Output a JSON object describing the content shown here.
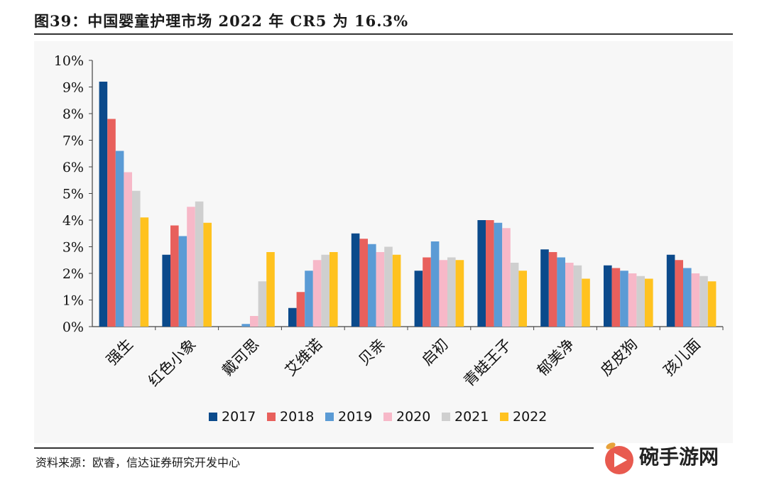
{
  "header": {
    "title": "图39：中国婴童护理市场 2022 年 CR5 为 16.3%"
  },
  "footer": {
    "source": "资料来源：欧睿，信达证券研究开发中心"
  },
  "watermark": {
    "text": "碗手游网",
    "icon": "play-badge-icon"
  },
  "colors": {
    "2017": "#0b4a8b",
    "2018": "#e8605c",
    "2019": "#5b9bd5",
    "2020": "#f7b8c8",
    "2021": "#cfcfcf",
    "2022": "#ffc21f"
  },
  "chart_data": {
    "type": "bar",
    "title": "",
    "xlabel": "",
    "ylabel": "",
    "ylim": [
      0,
      10
    ],
    "y_ticks": [
      "0%",
      "1%",
      "2%",
      "3%",
      "4%",
      "5%",
      "6%",
      "7%",
      "8%",
      "9%",
      "10%"
    ],
    "grid": false,
    "legend_position": "bottom",
    "categories": [
      "强生",
      "红色小象",
      "戴可思",
      "艾维诺",
      "贝亲",
      "启初",
      "青蛙王子",
      "郁美净",
      "皮皮狗",
      "孩儿面"
    ],
    "series": [
      {
        "name": "2017",
        "values": [
          9.2,
          2.7,
          0.0,
          0.7,
          3.5,
          2.1,
          4.0,
          2.9,
          2.3,
          2.7
        ]
      },
      {
        "name": "2018",
        "values": [
          7.8,
          3.8,
          0.0,
          1.3,
          3.3,
          2.6,
          4.0,
          2.8,
          2.2,
          2.5
        ]
      },
      {
        "name": "2019",
        "values": [
          6.6,
          3.4,
          0.1,
          2.1,
          3.1,
          3.2,
          3.9,
          2.6,
          2.1,
          2.2
        ]
      },
      {
        "name": "2020",
        "values": [
          5.8,
          4.5,
          0.4,
          2.5,
          2.8,
          2.5,
          3.7,
          2.4,
          2.0,
          2.0
        ]
      },
      {
        "name": "2021",
        "values": [
          5.1,
          4.7,
          1.7,
          2.7,
          3.0,
          2.6,
          2.4,
          2.3,
          1.9,
          1.9
        ]
      },
      {
        "name": "2022",
        "values": [
          4.1,
          3.9,
          2.8,
          2.8,
          2.7,
          2.5,
          2.1,
          1.8,
          1.8,
          1.7
        ]
      }
    ]
  }
}
